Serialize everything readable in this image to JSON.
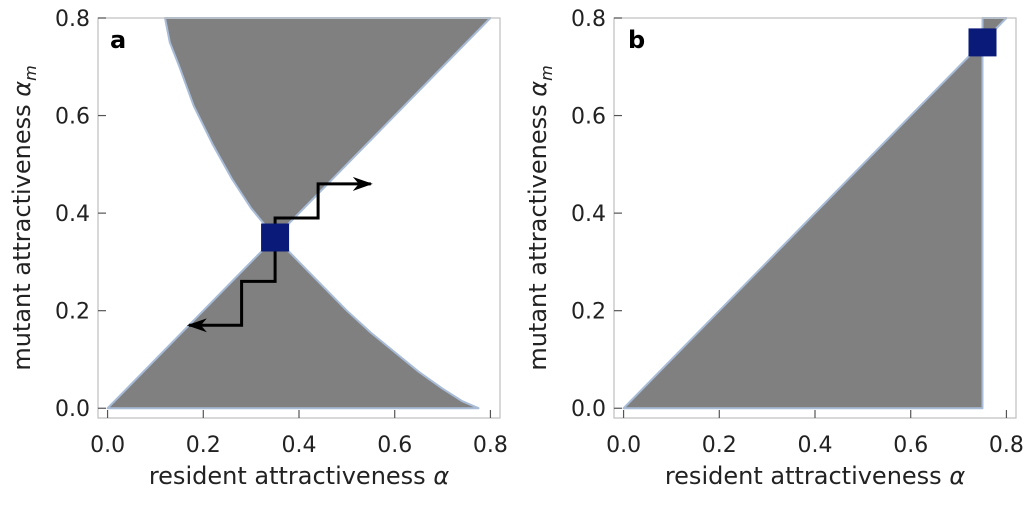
{
  "chart_data": [
    {
      "type": "area",
      "panel_label": "a",
      "xlabel": "resident attractiveness",
      "xlabel_symbol": "α",
      "ylabel": "mutant attractiveness",
      "ylabel_symbol": "α",
      "ylabel_subscript": "m",
      "xlim": [
        -0.02,
        0.82
      ],
      "ylim": [
        -0.02,
        0.8
      ],
      "xticks": [
        "0.0",
        "0.2",
        "0.4",
        "0.6",
        "0.8"
      ],
      "yticks": [
        "0.0",
        "0.2",
        "0.4",
        "0.6",
        "0.8"
      ],
      "region_color": "#808080",
      "region_edge_color": "#a8bcd8",
      "singular_point": {
        "x": 0.35,
        "y": 0.35,
        "color": "#0a1a78"
      },
      "regions": [
        {
          "name": "",
          "points": [
            [
              0.12,
              0.8
            ],
            [
              0.13,
              0.75
            ],
            [
              0.15,
              0.7
            ],
            [
              0.18,
              0.62
            ],
            [
              0.22,
              0.54
            ],
            [
              0.26,
              0.47
            ],
            [
              0.3,
              0.41
            ],
            [
              0.35,
              0.35
            ],
            [
              0.8,
              0.8
            ]
          ]
        },
        {
          "name": "",
          "points": [
            [
              0.0,
              0.0
            ],
            [
              0.35,
              0.35
            ],
            [
              0.4,
              0.3
            ],
            [
              0.45,
              0.25
            ],
            [
              0.5,
              0.2
            ],
            [
              0.55,
              0.155
            ],
            [
              0.6,
              0.115
            ],
            [
              0.65,
              0.075
            ],
            [
              0.7,
              0.04
            ],
            [
              0.74,
              0.015
            ],
            [
              0.775,
              0.0
            ]
          ]
        }
      ],
      "arrows": [
        {
          "path": [
            [
              0.35,
              0.35
            ],
            [
              0.35,
              0.39
            ],
            [
              0.44,
              0.39
            ],
            [
              0.44,
              0.46
            ],
            [
              0.55,
              0.46
            ]
          ]
        },
        {
          "path": [
            [
              0.35,
              0.35
            ],
            [
              0.35,
              0.26
            ],
            [
              0.28,
              0.26
            ],
            [
              0.28,
              0.17
            ],
            [
              0.17,
              0.17
            ]
          ]
        }
      ]
    },
    {
      "type": "area",
      "panel_label": "b",
      "xlabel": "resident attractiveness",
      "xlabel_symbol": "α",
      "ylabel": "mutant attractiveness",
      "ylabel_symbol": "α",
      "ylabel_subscript": "m",
      "xlim": [
        -0.02,
        0.82
      ],
      "ylim": [
        -0.02,
        0.8
      ],
      "xticks": [
        "0.0",
        "0.2",
        "0.4",
        "0.6",
        "0.8"
      ],
      "yticks": [
        "0.0",
        "0.2",
        "0.4",
        "0.6",
        "0.8"
      ],
      "region_color": "#808080",
      "region_edge_color": "#a8bcd8",
      "singular_point": {
        "x": 0.75,
        "y": 0.75,
        "color": "#0a1a78"
      },
      "regions": [
        {
          "name": "",
          "points": [
            [
              0.0,
              0.0
            ],
            [
              0.75,
              0.75
            ],
            [
              0.75,
              0.0
            ]
          ]
        },
        {
          "name": "",
          "points": [
            [
              0.75,
              0.75
            ],
            [
              0.75,
              0.8
            ],
            [
              0.8,
              0.8
            ]
          ]
        }
      ],
      "arrows": []
    }
  ]
}
